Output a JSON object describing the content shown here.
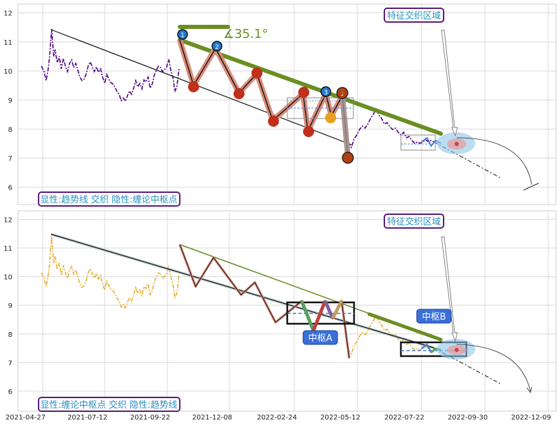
{
  "chart_data": [
    {
      "type": "line",
      "panel": "top",
      "ylim": [
        5.4,
        12.3
      ],
      "yticks": [
        "6",
        "7",
        "8",
        "9",
        "10",
        "11",
        "12"
      ],
      "grid": true,
      "caption": "显性:趋势线 交织 隐性:缠论中枢点",
      "feature_zone_label": "特征交织区域",
      "angle_label": "∡35.1°",
      "markers": {
        "top_labels": [
          "1",
          "2",
          "3"
        ],
        "bottom_label": "♩"
      },
      "colors": {
        "price": "#4b0082",
        "trend": "#6b8e23",
        "stroke": "#d98c7a"
      }
    },
    {
      "type": "line",
      "panel": "bottom",
      "ylim": [
        5.3,
        12.3
      ],
      "yticks": [
        "6",
        "7",
        "8",
        "9",
        "10",
        "11",
        "12"
      ],
      "grid": true,
      "caption": "显性:缠论中枢点 交织 隐性:趋势线",
      "feature_zone_label": "特征交织区域",
      "zone_labels": [
        "中枢A",
        "中枢B"
      ],
      "colors": {
        "price": "#e8b030",
        "trend": "#6b8e23",
        "zone": "#111111"
      }
    }
  ],
  "x_axis": {
    "ticks": [
      "2021-04-27",
      "2021-07-12",
      "2021-09-22",
      "2021-12-08",
      "2022-02-24",
      "2022-05-12",
      "2022-07-22",
      "2022-09-30",
      "2022-12-09"
    ]
  }
}
